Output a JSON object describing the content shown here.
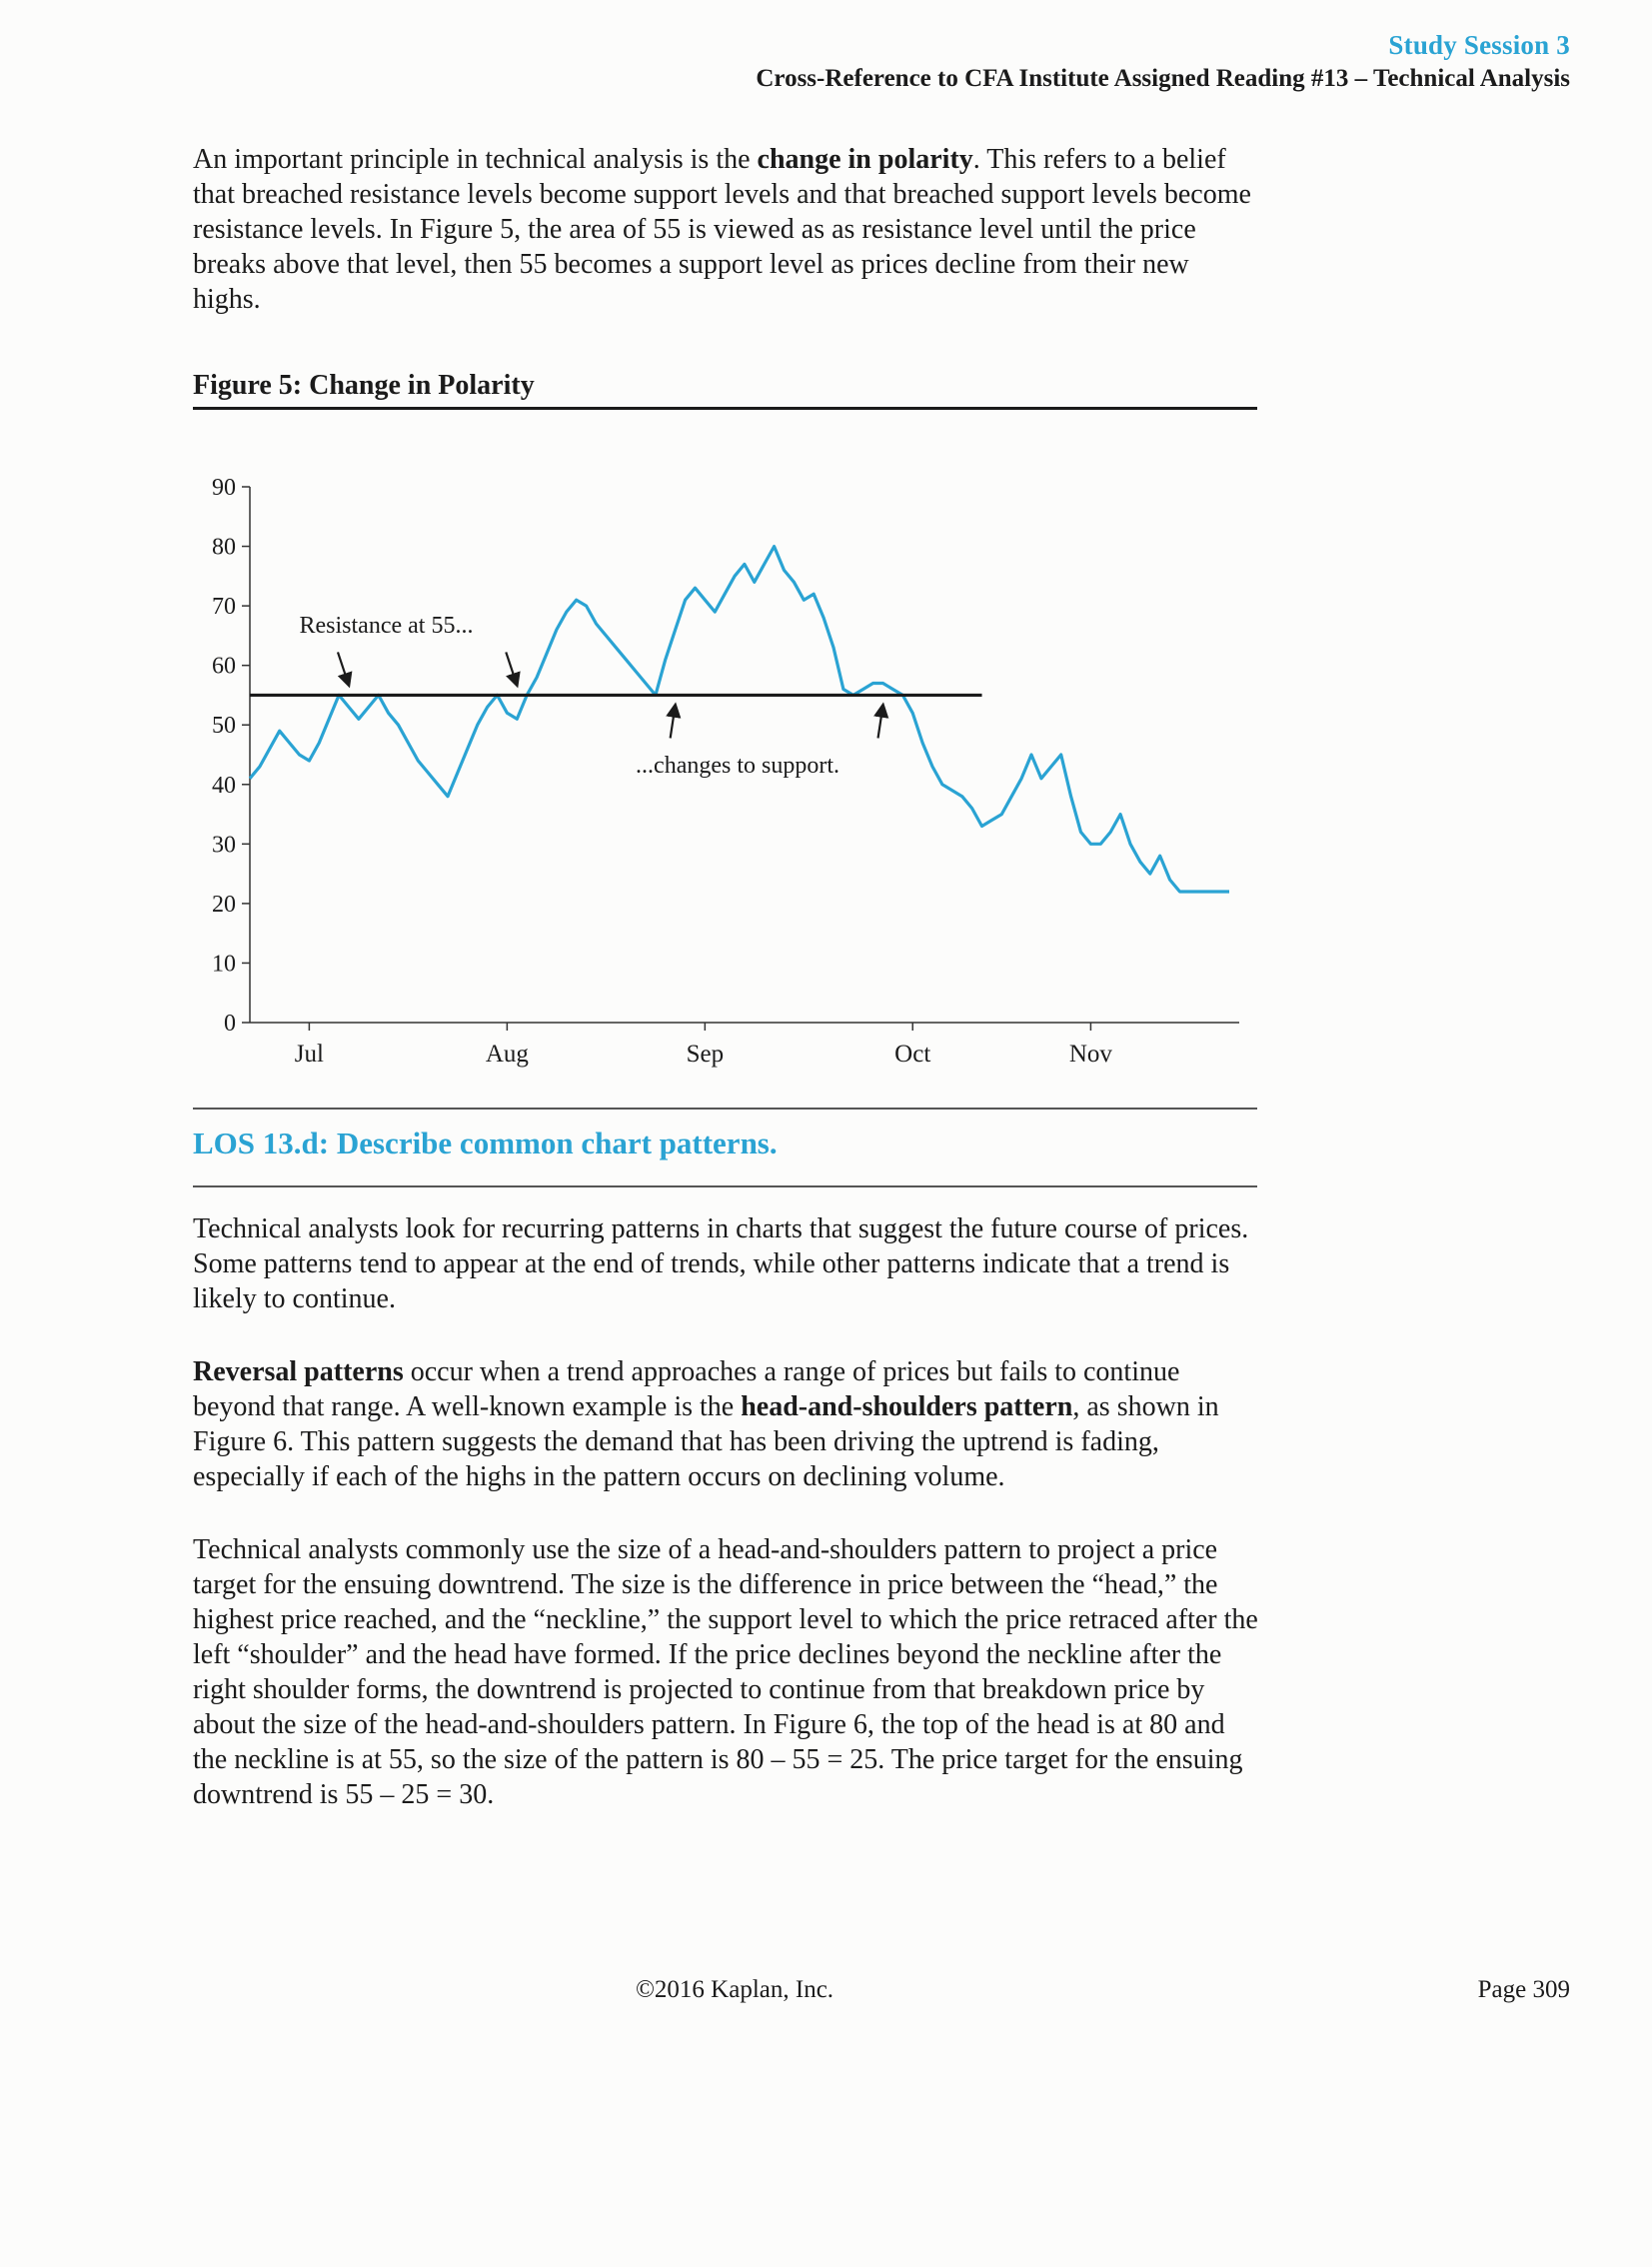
{
  "header": {
    "session": "Study Session 3",
    "cross_reference": "Cross-Reference to CFA Institute Assigned Reading #13 – Technical Analysis"
  },
  "intro": {
    "text_1": "An important principle in technical analysis is the ",
    "bold_1": "change in polarity",
    "text_2": ". This refers to a belief that breached resistance levels become support levels and that breached support levels become resistance levels. In Figure 5, the area of 55 is viewed as as resistance level until the price breaks above that level, then 55 becomes a support level as prices decline from their new highs."
  },
  "figure": {
    "title": "Figure 5: Change in Polarity"
  },
  "chart_data": {
    "type": "line",
    "title": "",
    "xlabel": "",
    "ylabel": "",
    "ylim": [
      0,
      90
    ],
    "y_ticks": [
      0,
      10,
      20,
      30,
      40,
      50,
      60,
      70,
      80,
      90
    ],
    "x_ticks": [
      "Jul",
      "Aug",
      "Sep",
      "Oct",
      "Nov"
    ],
    "x_tick_positions": [
      6,
      26,
      46,
      67,
      85
    ],
    "x_range": [
      0,
      99
    ],
    "line_color": "#2aa3d3",
    "horizontal_line": {
      "value": 55,
      "x_from": 0,
      "x_to": 74,
      "color": "#1b1b1b"
    },
    "annotations": {
      "resistance_label": "Resistance at 55...",
      "support_label": "...changes to support.",
      "resistance_arrow_x": [
        10,
        27
      ],
      "support_arrow_x": [
        43,
        64
      ]
    },
    "series": [
      {
        "x": [
          0,
          1,
          2,
          3,
          4,
          5,
          6,
          7,
          8,
          9,
          10,
          11,
          12,
          13,
          14,
          15,
          16,
          17,
          18,
          19,
          20,
          21,
          22,
          23,
          24,
          25,
          26,
          27,
          28,
          29,
          30,
          31,
          32,
          33,
          34,
          35,
          36,
          37,
          38,
          39,
          40,
          41,
          42,
          43,
          44,
          45,
          46,
          47,
          48,
          49,
          50,
          51,
          52,
          53,
          54,
          55,
          56,
          57,
          58,
          59,
          60,
          61,
          62,
          63,
          64,
          65,
          66,
          67,
          68,
          69,
          70,
          71,
          72,
          73,
          74,
          75,
          76,
          77,
          78,
          79,
          80,
          81,
          82,
          83,
          84,
          85,
          86,
          87,
          88,
          89,
          90,
          91,
          92,
          93,
          94,
          95,
          96,
          97,
          98,
          99
        ],
        "values": [
          41,
          43,
          46,
          49,
          47,
          45,
          44,
          47,
          51,
          55,
          53,
          51,
          53,
          55,
          52,
          50,
          47,
          44,
          42,
          40,
          38,
          42,
          46,
          50,
          53,
          55,
          52,
          51,
          55,
          58,
          62,
          66,
          69,
          71,
          70,
          67,
          65,
          63,
          61,
          59,
          57,
          55,
          61,
          66,
          71,
          73,
          71,
          69,
          72,
          75,
          77,
          74,
          77,
          80,
          76,
          74,
          71,
          72,
          68,
          63,
          56,
          55,
          56,
          57,
          57,
          56,
          55,
          52,
          47,
          43,
          40,
          39,
          38,
          36,
          33,
          34,
          35,
          38,
          41,
          45,
          41,
          43,
          45,
          38,
          32,
          30,
          30,
          32,
          35,
          30,
          27,
          25,
          28,
          24,
          22,
          22,
          22,
          22,
          22,
          22
        ]
      }
    ]
  },
  "los": {
    "title": "LOS 13.d: Describe common chart patterns."
  },
  "body": {
    "p1": "Technical analysts look for recurring patterns in charts that suggest the future course of prices. Some patterns tend to appear at the end of trends, while other patterns indicate that a trend is likely to continue.",
    "p2_bold_1": "Reversal patterns",
    "p2_text_1": " occur when a trend approaches a range of prices but fails to continue beyond that range. A well-known example is the ",
    "p2_bold_2": "head-and-shoulders pattern",
    "p2_text_2": ", as shown in Figure 6. This pattern suggests the demand that has been driving the uptrend is fading, especially if each of the highs in the pattern occurs on declining volume.",
    "p3": "Technical analysts commonly use the size of a head-and-shoulders pattern to project a price target for the ensuing downtrend. The size is the difference in price between the “head,” the highest price reached, and the “neckline,” the support level to which the price retraced after the left “shoulder” and the head have formed. If the price declines beyond the neckline after the right shoulder forms, the downtrend is projected to continue from that breakdown price by about the size of the head-and-shoulders pattern. In Figure 6, the top of the head is at 80 and the neckline is at 55, so the size of the pattern is 80 – 55 = 25. The price target for the ensuing downtrend is 55 – 25 = 30."
  },
  "footer": {
    "copyright": "©2016 Kaplan, Inc.",
    "page": "Page 309"
  }
}
